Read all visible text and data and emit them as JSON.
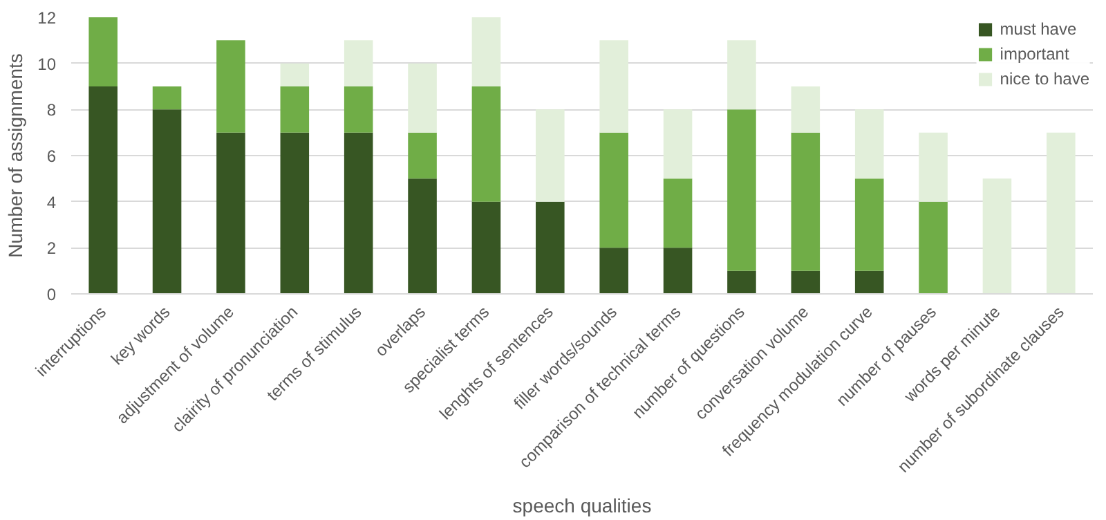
{
  "chart_data": {
    "type": "bar",
    "stacked": true,
    "xlabel": "speech qualities",
    "ylabel": "Number of assignments",
    "categories": [
      "interruptions",
      "key words",
      "adjustment of volume",
      "clairity of pronunciation",
      "terms of stimulus",
      "overlaps",
      "specialist terms",
      "lenghts of sentences",
      "filler words/sounds",
      "comparison of technical terms",
      "number of questions",
      "conversation volume",
      "frequency modulation curve",
      "number of pauses",
      "words per minute",
      "number of subordinate clauses"
    ],
    "series": [
      {
        "name": "must have",
        "color": "#375623",
        "values": [
          9,
          8,
          7,
          7,
          7,
          5,
          4,
          4,
          2,
          2,
          1,
          1,
          1,
          0,
          0,
          0
        ]
      },
      {
        "name": "important",
        "color": "#70ad47",
        "values": [
          3,
          1,
          4,
          2,
          2,
          2,
          5,
          0,
          5,
          3,
          7,
          6,
          4,
          4,
          0,
          0
        ]
      },
      {
        "name": "nice to have",
        "color": "#e2efda",
        "values": [
          0,
          0,
          0,
          1,
          2,
          3,
          3,
          4,
          4,
          3,
          3,
          2,
          3,
          3,
          5,
          7
        ]
      }
    ],
    "ylim": [
      0,
      12
    ],
    "yticks": [
      0,
      2,
      4,
      6,
      8,
      10,
      12
    ],
    "grid": "y",
    "legend": "top right"
  }
}
